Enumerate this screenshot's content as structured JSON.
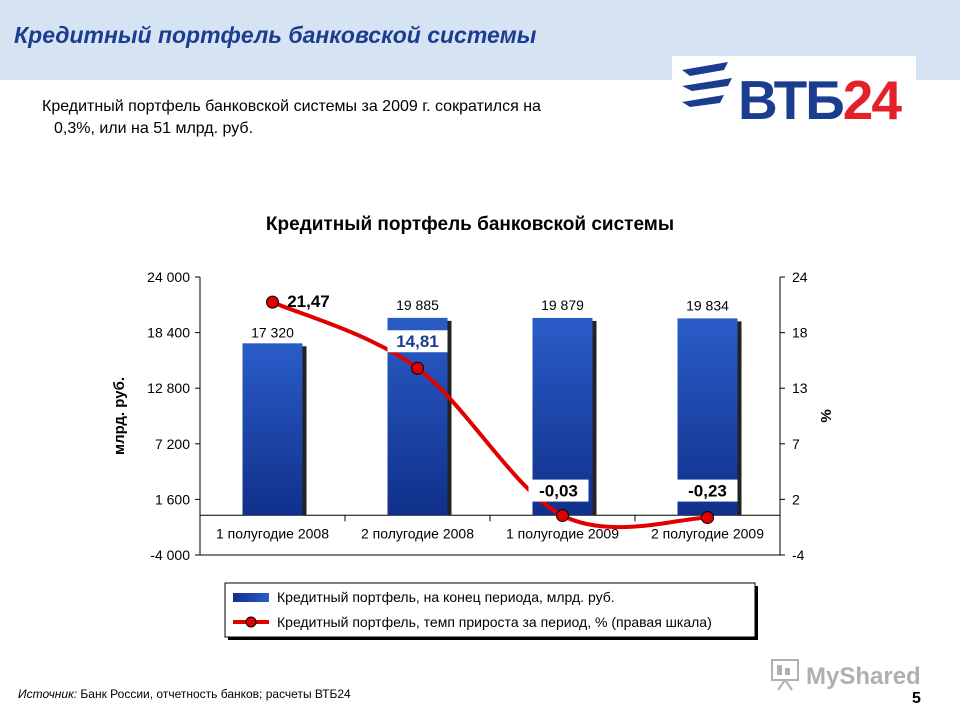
{
  "slide": {
    "title": "Кредитный портфель банковской системы",
    "summary_line1": "Кредитный портфель банковской системы за 2009 г. сократился на",
    "summary_line2": "0,3%, или на 51 млрд. руб.",
    "page_number": "5",
    "source_label": "Источник:",
    "source_text": "Банк России, отчетность банков; расчеты ВТБ24"
  },
  "logo": {
    "text_main": "ВТБ",
    "text_accent": "24"
  },
  "watermark": {
    "text": "MyShared"
  },
  "colors": {
    "header_band": "#d6e3f3",
    "title": "#1b3d8f",
    "bar": "#2a5cc8",
    "bar_dark": "#10308a",
    "line": "#e00000",
    "logo_blue": "#1b3d8f",
    "logo_red": "#e4202b"
  },
  "chart_data": {
    "type": "bar",
    "title": "Кредитный портфель банковской системы",
    "categories": [
      "1 полугодие 2008",
      "2 полугодие 2008",
      "1 полугодие 2009",
      "2 полугодие 2009"
    ],
    "series": [
      {
        "name": "Кредитный портфель, на конец периода, млрд. руб.",
        "type": "bar",
        "axis": "left",
        "values": [
          17320,
          19885,
          19879,
          19834
        ],
        "labels": [
          "17 320",
          "19 885",
          "19 879",
          "19 834"
        ]
      },
      {
        "name": "Кредитный портфель, темп прироста за период, % (правая шкала)",
        "type": "line",
        "axis": "right",
        "values": [
          21.47,
          14.81,
          -0.03,
          -0.23
        ],
        "labels": [
          "21,47",
          "14,81",
          "-0,03",
          "-0,23"
        ]
      }
    ],
    "ylabel": "млрд. руб.",
    "y2label": "%",
    "ylim": [
      -4000,
      24000
    ],
    "y2lim": [
      -4,
      24
    ],
    "yticks": [
      "24 000",
      "18 400",
      "12 800",
      "7 200",
      "1 600",
      "-4 000"
    ],
    "y2ticks": [
      "24",
      "18",
      "13",
      "7",
      "2",
      "-4"
    ],
    "legend_position": "bottom",
    "grid": false
  }
}
